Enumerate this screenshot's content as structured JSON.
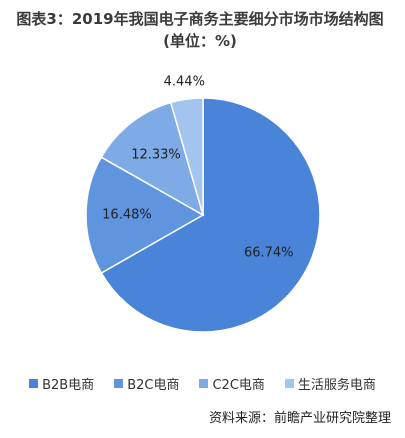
{
  "chart_data": {
    "type": "pie",
    "title": "图表3：2019年我国电子商务主要细分市场市场结构图(单位：%)",
    "categories": [
      "B2B电商",
      "B2C电商",
      "C2C电商",
      "生活服务电商"
    ],
    "values": [
      66.74,
      16.48,
      12.33,
      4.44
    ],
    "value_labels": [
      "66.74%",
      "16.48%",
      "12.33%",
      "4.44%"
    ],
    "colors": [
      "#4a84d8",
      "#5f95df",
      "#7eaae6",
      "#a3c4ee"
    ],
    "legend": "bottom",
    "source": "资料来源：前瞻产业研究院整理"
  }
}
